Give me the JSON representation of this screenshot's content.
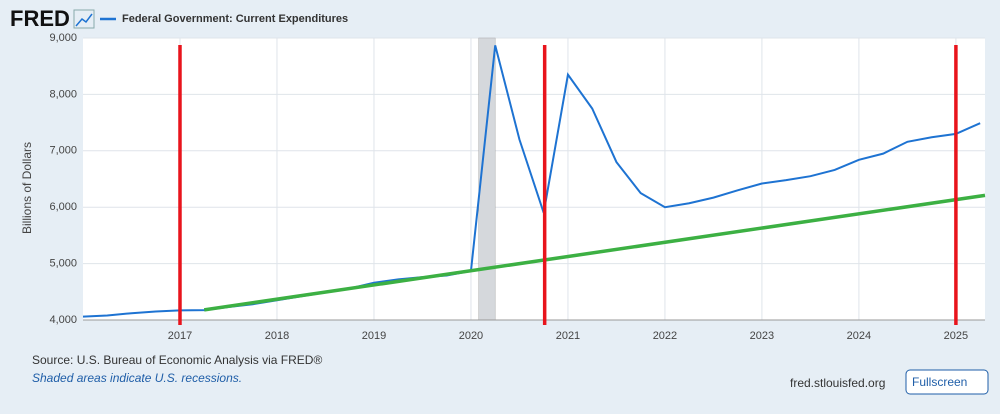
{
  "chart_data": {
    "type": "line",
    "logo": "FRED",
    "ylabel": "Billions of Dollars",
    "source": "Source: U.S. Bureau of Economic Analysis via FRED®",
    "note": "Shaded areas indicate U.S. recessions.",
    "site": "fred.stlouisfed.org",
    "button": "Fullscreen",
    "xlim": [
      2016.0,
      2025.3
    ],
    "xticks": [
      2017,
      2018,
      2019,
      2020,
      2021,
      2022,
      2023,
      2024,
      2025
    ],
    "ylim": [
      4000,
      9000
    ],
    "yticks": [
      {
        "value": 4000,
        "label": "4,000"
      },
      {
        "value": 5000,
        "label": "5,000"
      },
      {
        "value": 6000,
        "label": "6,000"
      },
      {
        "value": 7000,
        "label": "7,000"
      },
      {
        "value": 8000,
        "label": "8,000"
      },
      {
        "value": 9000,
        "label": "9,000"
      }
    ],
    "grid": true,
    "recessions": [
      [
        2020.08,
        2020.25
      ]
    ],
    "series": [
      {
        "name": "Federal Government: Current Expenditures",
        "color": "#1e73d2",
        "x": [
          2016.0,
          2016.25,
          2016.5,
          2016.75,
          2017.0,
          2017.25,
          2017.5,
          2017.75,
          2018.0,
          2018.25,
          2018.5,
          2018.75,
          2019.0,
          2019.25,
          2019.5,
          2019.75,
          2020.0,
          2020.25,
          2020.5,
          2020.75,
          2021.0,
          2021.25,
          2021.5,
          2021.75,
          2022.0,
          2022.25,
          2022.5,
          2022.75,
          2023.0,
          2023.25,
          2023.5,
          2023.75,
          2024.0,
          2024.25,
          2024.5,
          2024.75,
          2025.0,
          2025.25
        ],
        "values": [
          4060,
          4080,
          4120,
          4150,
          4170,
          4175,
          4230,
          4280,
          4350,
          4420,
          4490,
          4560,
          4660,
          4720,
          4760,
          4790,
          4870,
          8870,
          7200,
          5900,
          8350,
          7750,
          6800,
          6250,
          6000,
          6070,
          6170,
          6300,
          6420,
          6480,
          6550,
          6660,
          6840,
          6950,
          7160,
          7240,
          7300,
          7490
        ]
      }
    ],
    "trend": {
      "color": "#3cb043",
      "x": [
        2017.25,
        2025.3
      ],
      "values": [
        4180,
        6210
      ]
    },
    "vlines": {
      "color": "#e8141c",
      "x": [
        2017.0,
        2020.76,
        2025.0
      ]
    }
  }
}
